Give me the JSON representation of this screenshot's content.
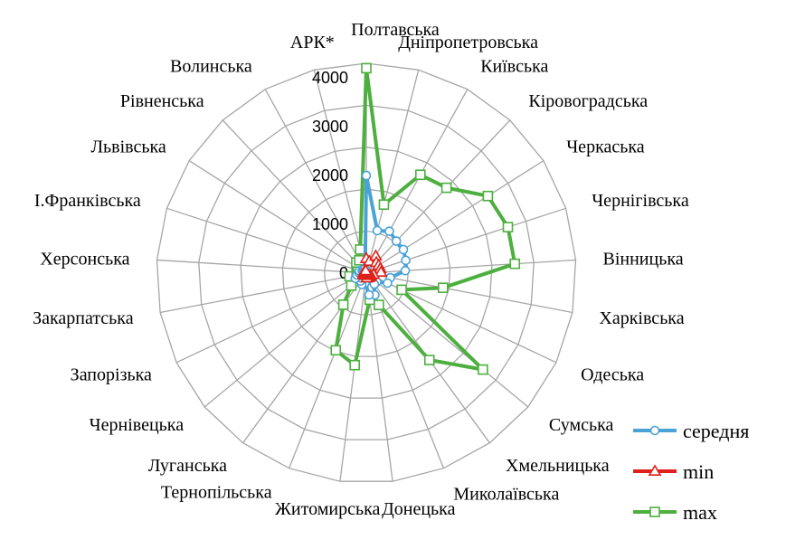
{
  "chart_data": {
    "type": "radar",
    "title": "",
    "categories": [
      "Полтавська",
      "Дніпропетровська",
      "Київська",
      "Кіровоградська",
      "Черкаська",
      "Чернігівська",
      "Вінницька",
      "Харківська",
      "Одеська",
      "Сумська",
      "Хмельницька",
      "Миколаївська",
      "Донецька",
      "Житомирська",
      "Тернопільська",
      "Луганська",
      "Чернівецька",
      "Запорізька",
      "Закарпатська",
      "Херсонська",
      "І.Франківська",
      "Львівська",
      "Рівненська",
      "Волинська",
      "АРК*"
    ],
    "radial_ticks": [
      0,
      1000,
      2000,
      3000,
      4000
    ],
    "tick_labels": [
      "0",
      "1000",
      "2000",
      "3000",
      "4000"
    ],
    "rmax": 4300,
    "legend_position": "bottom-right",
    "series": [
      {
        "name": "середня",
        "color": "#4aa3d8",
        "marker": "circle",
        "values": [
          2000,
          900,
          980,
          900,
          900,
          850,
          800,
          500,
          480,
          280,
          280,
          480,
          450,
          200,
          250,
          200,
          150,
          250,
          200,
          150,
          150,
          100,
          100,
          100,
          100
        ]
      },
      {
        "name": "min",
        "color": "#e0201b",
        "marker": "triangle",
        "values": [
          300,
          250,
          400,
          300,
          300,
          300,
          300,
          150,
          100,
          100,
          100,
          100,
          100,
          50,
          50,
          50,
          50,
          50,
          50,
          50,
          50,
          50,
          50,
          50,
          50
        ]
      },
      {
        "name": "max",
        "color": "#4caf3e",
        "marker": "square",
        "values": [
          4200,
          1450,
          2300,
          2400,
          2950,
          3050,
          3050,
          1600,
          800,
          3100,
          2200,
          700,
          550,
          1900,
          1700,
          800,
          400,
          100,
          350,
          200,
          200,
          200,
          300,
          300,
          500
        ]
      }
    ]
  }
}
